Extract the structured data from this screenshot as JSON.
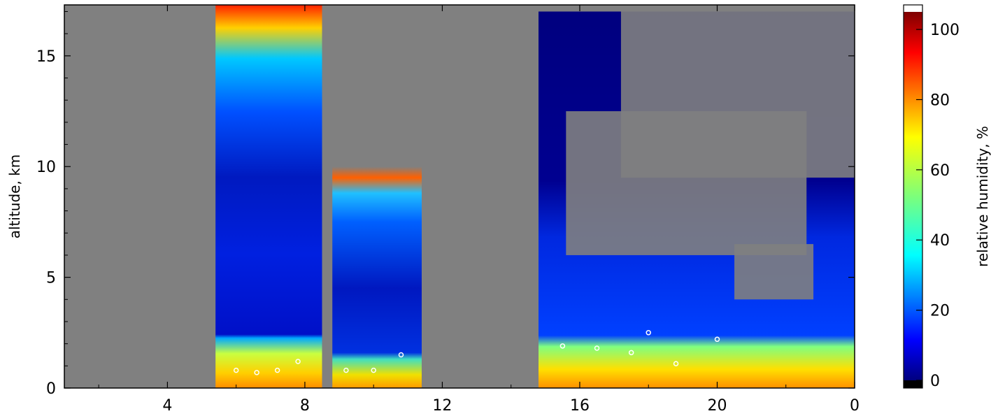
{
  "chart_data": {
    "type": "heatmap",
    "title": "",
    "xlabel": "",
    "ylabel": "altitude, km",
    "x_ticks": [
      "4",
      "8",
      "12",
      "16",
      "20",
      "0"
    ],
    "y_ticks": [
      "0",
      "5",
      "10",
      "15"
    ],
    "ylim": [
      0,
      17.3
    ],
    "grid": false,
    "colorbar": {
      "label": "relative humidity, %",
      "range": [
        0,
        105
      ],
      "ticks": [
        "0",
        "20",
        "40",
        "60",
        "80",
        "100"
      ],
      "colormap": "jet",
      "over_color": "#ffffff",
      "under_color": "#000000"
    },
    "missing_data_color": "#808080",
    "contour_color": "#ffffff",
    "segments": [
      {
        "x_start_h": 5.4,
        "x_end_h": 8.5,
        "surface_rh": 85,
        "boundary_layer_top_km": 2.3,
        "upper_rh": 10,
        "cloud_top_km": 17.3
      },
      {
        "x_start_h": 8.8,
        "x_end_h": 11.4,
        "surface_rh": 78,
        "boundary_layer_top_km": 2.0,
        "upper_rh": 12,
        "cloud_top_km": 10.0
      },
      {
        "x_start_h": 14.8,
        "x_end_h": 24.0,
        "surface_rh": 75,
        "boundary_layer_top_km": 2.4,
        "upper_rh": 8,
        "cloud_top_km": 17.0
      }
    ]
  }
}
